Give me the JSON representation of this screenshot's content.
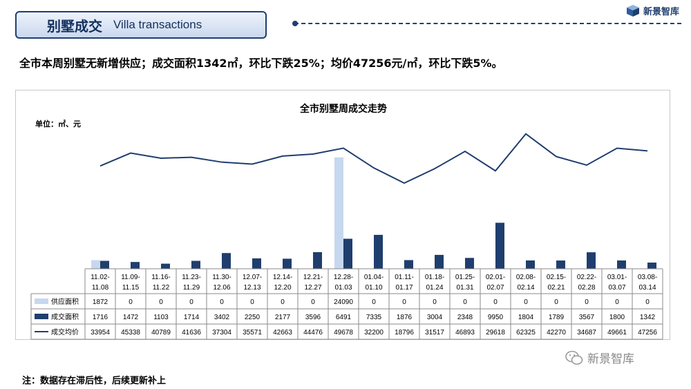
{
  "header": {
    "title_zh": "别墅成交",
    "title_en": "Villa transactions",
    "logo_text": "新景智库"
  },
  "headline": "全市本周别墅无新增供应；成交面积1342㎡，环比下跌25%；均价47256元/㎡，环比下跌5%。",
  "footnote": "注：数据存在滞后性，后续更新补上",
  "watermark": "新景智库",
  "colors": {
    "supply": "#c6d8ef",
    "area": "#1f3e6e",
    "price_line": "#1f3e6e",
    "title_box": "#1f3e6e"
  },
  "chart_data": {
    "type": "bar",
    "title": "全市别墅周成交走势",
    "unit_label": "单位：㎡、元",
    "categories": [
      "11.02-11.08",
      "11.09-11.15",
      "11.16-11.22",
      "11.23-11.29",
      "11.30-12.06",
      "12.07-12.13",
      "12.14-12.20",
      "12.21-12.27",
      "12.28-01.03",
      "01.04-01.10",
      "01.11-01.17",
      "01.18-01.24",
      "01.25-01.31",
      "02.01-02.07",
      "02.08-02.14",
      "02.15-02.21",
      "02.22-02.28",
      "03.01-03.07",
      "03.08-03.14"
    ],
    "series": [
      {
        "name": "供应面积",
        "kind": "bar",
        "values": [
          1872,
          0,
          0,
          0,
          0,
          0,
          0,
          0,
          24090,
          0,
          0,
          0,
          0,
          0,
          0,
          0,
          0,
          0,
          0
        ]
      },
      {
        "name": "成交面积",
        "kind": "bar",
        "values": [
          1716,
          1472,
          1103,
          1714,
          3402,
          2250,
          2177,
          3596,
          6491,
          7335,
          1876,
          3004,
          2348,
          9950,
          1804,
          1789,
          3567,
          1800,
          1342
        ]
      },
      {
        "name": "成交均价",
        "kind": "line",
        "values": [
          33954,
          45338,
          40789,
          41636,
          37304,
          35571,
          42663,
          44476,
          49678,
          32200,
          18796,
          31517,
          46893,
          29618,
          62325,
          42270,
          34687,
          49661,
          47256
        ]
      }
    ],
    "bar_ylim": [
      0,
      24500
    ],
    "line_ylim": [
      -57000,
      64000
    ],
    "grid": false,
    "legend": "table-left"
  }
}
